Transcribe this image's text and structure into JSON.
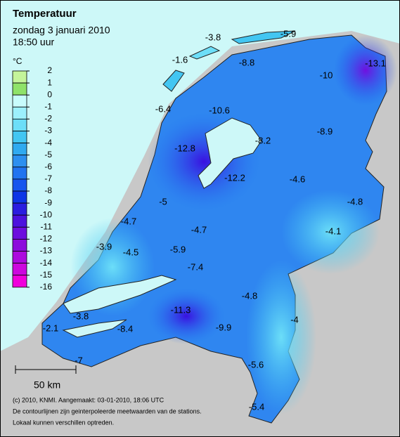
{
  "header": {
    "title": "Temperatuur",
    "date": "zondag 3 januari 2010",
    "time": "18:50 uur"
  },
  "legend": {
    "unit": "°C",
    "levels": [
      2,
      1,
      0,
      -1,
      -2,
      -3,
      -4,
      -5,
      -6,
      -7,
      -8,
      -9,
      -10,
      -11,
      -12,
      -13,
      -14,
      -15,
      -16
    ],
    "colors": [
      "#c4f49a",
      "#8fe26a",
      "#c8fcfc",
      "#9cf0fc",
      "#6cdef8",
      "#42c6f2",
      "#30aaf0",
      "#2c90f0",
      "#2074f0",
      "#1656ee",
      "#0c36e6",
      "#2a1ee0",
      "#4c12de",
      "#6c0ede",
      "#8c0cdc",
      "#ac0ade",
      "#cc08de",
      "#f000dc"
    ]
  },
  "stations": [
    -3.8,
    -5.9,
    -1.6,
    -8.8,
    -10.0,
    -13.1,
    -6.4,
    -10.6,
    -8.9,
    -8.2,
    -12.8,
    -12.2,
    -4.6,
    -5.0,
    -4.8,
    -4.7,
    -4.7,
    -4.1,
    -3.9,
    -4.5,
    -5.9,
    -7.4,
    -4.8,
    -11.3,
    -3.8,
    -4.0,
    -2.1,
    -8.4,
    -9.9,
    -7.0,
    -5.6,
    -5.4
  ],
  "scale": {
    "label": "50 km"
  },
  "footer": [
    "(c) 2010, KNMI. Aangemaakt: 03-01-2010, 18:06 UTC",
    "De contourlijnen zijn geinterpoleerde meetwaarden van de stations.",
    "Lokaal kunnen verschillen optreden."
  ]
}
